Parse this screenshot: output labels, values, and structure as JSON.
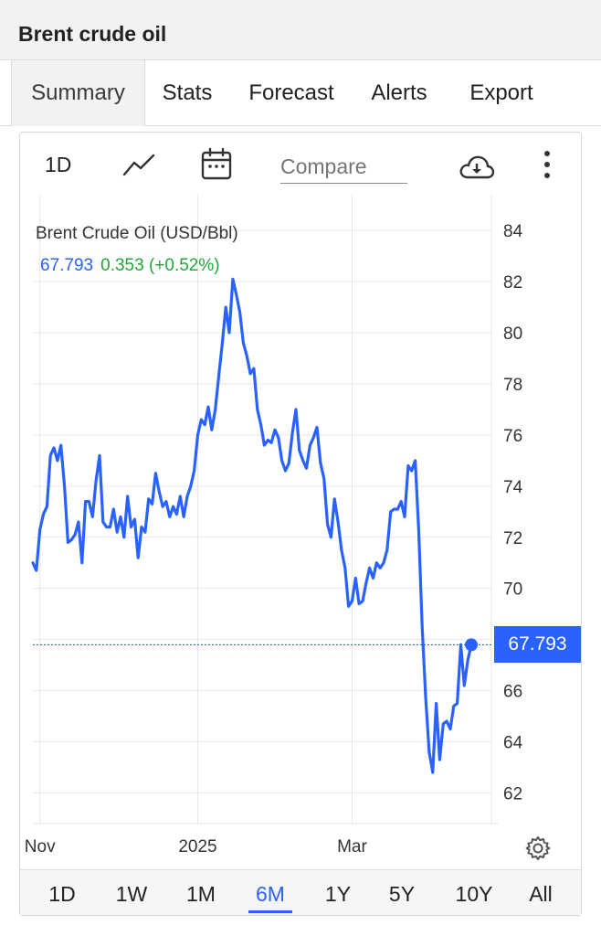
{
  "window": {
    "title": "Brent crude oil"
  },
  "tabs": [
    {
      "label": "Summary",
      "active": true
    },
    {
      "label": "Stats",
      "active": false
    },
    {
      "label": "Forecast",
      "active": false
    },
    {
      "label": "Alerts",
      "active": false
    },
    {
      "label": "Export",
      "active": false
    }
  ],
  "toolbar": {
    "interval": "1D",
    "chart_type_icon": "line-chart-icon",
    "date_icon": "calendar-icon",
    "compare_placeholder": "Compare",
    "download_icon": "cloud-download-icon",
    "more_icon": "more-vertical-icon"
  },
  "legend": {
    "title": "Brent Crude Oil (USD/Bbl)",
    "price": "67.793",
    "change": "0.353 (+0.52%)"
  },
  "last_price_label": "67.793",
  "ranges": [
    {
      "label": "1D",
      "active": false
    },
    {
      "label": "1W",
      "active": false
    },
    {
      "label": "1M",
      "active": false
    },
    {
      "label": "6M",
      "active": true
    },
    {
      "label": "1Y",
      "active": false
    },
    {
      "label": "5Y",
      "active": false
    },
    {
      "label": "10Y",
      "active": false
    },
    {
      "label": "All",
      "active": false
    }
  ],
  "colors": {
    "line": "#2962ff",
    "positive": "#20a734",
    "grid": "#e6e6e6"
  },
  "chart_data": {
    "type": "line",
    "title": "Brent Crude Oil (USD/Bbl)",
    "xlabel": "",
    "ylabel": "",
    "x_ticks": [
      {
        "label": "Nov",
        "index": 2
      },
      {
        "label": "2025",
        "index": 47
      },
      {
        "label": "Mar",
        "index": 91
      }
    ],
    "y_ticks": [
      62,
      64,
      66,
      68,
      70,
      72,
      74,
      76,
      78,
      80,
      82,
      84
    ],
    "y_tick_labels": [
      "62",
      "64",
      "66",
      "70",
      "72",
      "74",
      "76",
      "78",
      "80",
      "82",
      "84"
    ],
    "ylim": [
      60.8,
      85.4
    ],
    "grid": true,
    "last_value": 67.793,
    "series": [
      {
        "values": [
          71.0,
          70.7,
          72.3,
          72.9,
          73.2,
          75.2,
          75.5,
          75.0,
          75.6,
          74.0,
          71.8,
          71.9,
          72.1,
          72.6,
          71.0,
          73.4,
          73.4,
          72.8,
          74.2,
          75.2,
          72.6,
          72.4,
          72.4,
          73.1,
          72.2,
          72.8,
          72.0,
          73.6,
          72.4,
          72.7,
          71.2,
          72.4,
          72.2,
          73.5,
          73.3,
          74.5,
          73.8,
          73.2,
          73.4,
          72.8,
          73.2,
          72.9,
          73.6,
          72.8,
          73.6,
          74.0,
          74.6,
          76.0,
          76.6,
          76.4,
          77.1,
          76.2,
          77.0,
          78.3,
          79.6,
          81.0,
          80.0,
          82.1,
          81.5,
          80.8,
          79.6,
          79.1,
          78.4,
          78.6,
          77.0,
          76.4,
          75.6,
          75.8,
          75.7,
          76.2,
          75.9,
          75.0,
          74.6,
          74.9,
          76.1,
          77.0,
          75.4,
          75.0,
          74.7,
          75.6,
          75.9,
          76.3,
          74.9,
          74.3,
          72.5,
          72.0,
          73.5,
          72.6,
          71.5,
          70.8,
          69.3,
          69.5,
          70.4,
          69.4,
          69.5,
          70.2,
          70.8,
          70.4,
          71.0,
          70.8,
          71.0,
          71.5,
          73.0,
          73.1,
          73.1,
          73.4,
          72.8,
          74.8,
          74.6,
          75.0,
          72.3,
          68.5,
          65.7,
          63.6,
          62.8,
          65.5,
          63.3,
          64.7,
          64.8,
          64.5,
          65.4,
          65.5,
          67.8,
          66.2,
          67.2,
          67.793
        ]
      }
    ]
  }
}
